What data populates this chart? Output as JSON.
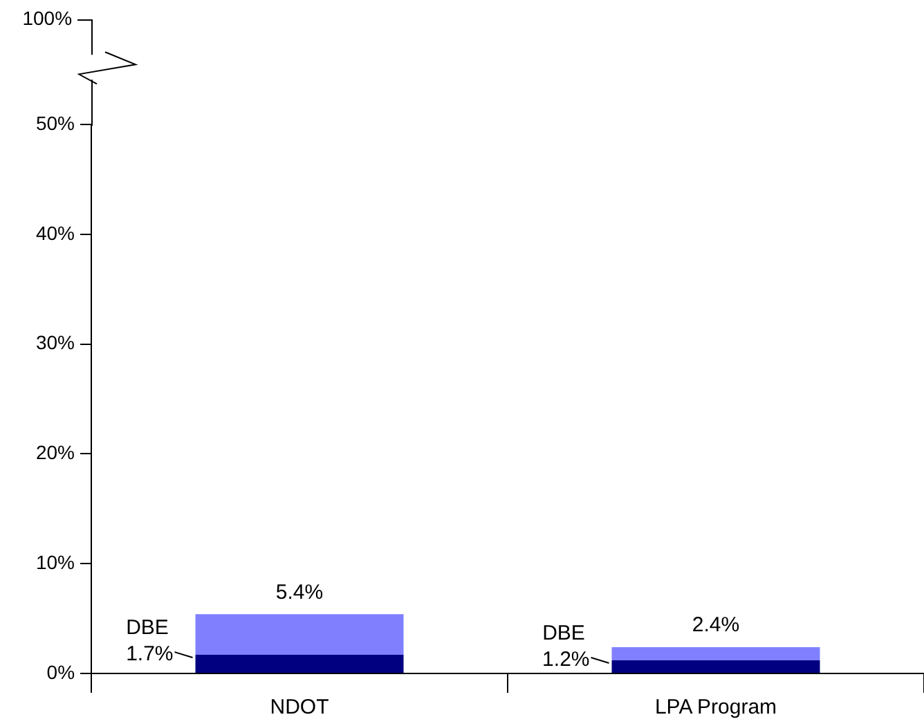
{
  "chart_data": {
    "type": "bar",
    "stacked": true,
    "categories": [
      "NDOT",
      "LPA Program"
    ],
    "series": [
      {
        "color": "#000080",
        "values": [
          1.7,
          1.2
        ],
        "value_labels": [
          "DBE\n1.7%",
          "DBE\n1.2%"
        ]
      },
      {
        "color": "#8080ff",
        "values": [
          3.7,
          1.2
        ]
      }
    ],
    "totals": [
      "5.4%",
      "2.4%"
    ],
    "ylim": [
      0,
      50
    ],
    "yticks": [
      {
        "value": 0,
        "label": "0%"
      },
      {
        "value": 10,
        "label": "10%"
      },
      {
        "value": 20,
        "label": "20%"
      },
      {
        "value": 30,
        "label": "30%"
      },
      {
        "value": 40,
        "label": "40%"
      },
      {
        "value": 50,
        "label": "50%"
      }
    ],
    "annotations": [
      "100%"
    ],
    "grid": false,
    "legend": false
  }
}
